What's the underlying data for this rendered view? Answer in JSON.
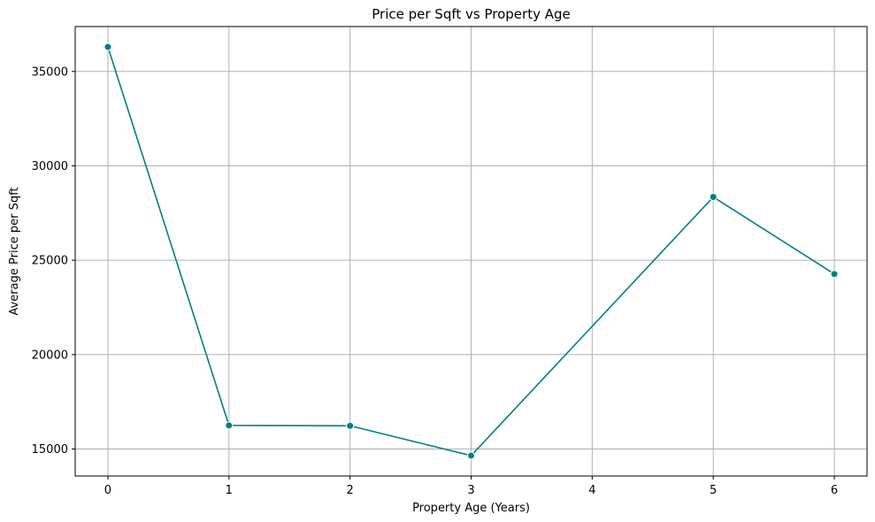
{
  "chart_data": {
    "type": "line",
    "title": "Price per Sqft vs Property Age",
    "xlabel": "Property Age (Years)",
    "ylabel": "Average Price per Sqft",
    "x": [
      0,
      1,
      2,
      3,
      5,
      6
    ],
    "series": [
      {
        "values": [
          36300,
          16250,
          16230,
          14650,
          28350,
          24270
        ]
      }
    ],
    "xticks": [
      0,
      1,
      2,
      3,
      4,
      5,
      6
    ],
    "yticks": [
      15000,
      20000,
      25000,
      30000,
      35000
    ],
    "xlim": [
      -0.27,
      6.27
    ],
    "ylim": [
      13570,
      37380
    ],
    "grid": true,
    "line_color": "#008080",
    "marker": "circle"
  }
}
